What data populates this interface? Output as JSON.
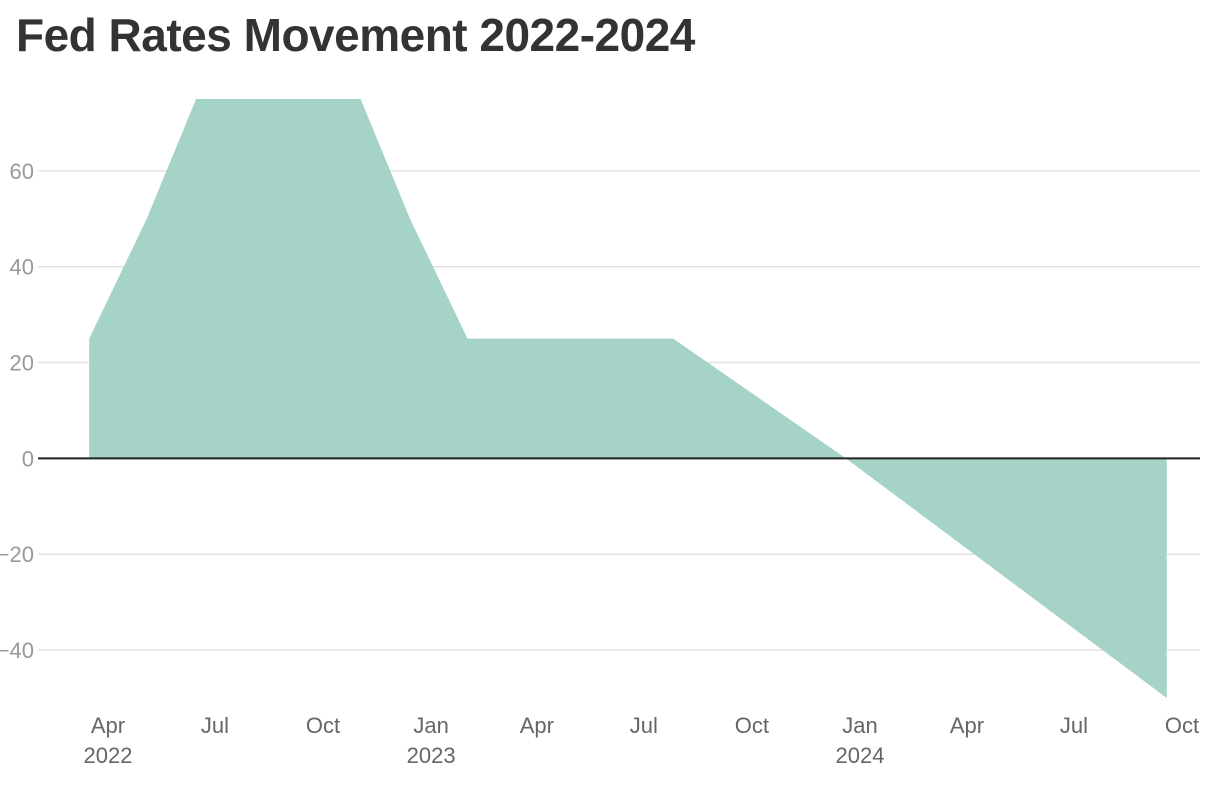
{
  "colors": {
    "area_fill": "#a5d3c7",
    "gridline": "#e2e2e2",
    "zero_line": "#222222",
    "title": "#333333",
    "y_tick": "#999999",
    "x_tick": "#666666"
  },
  "chart_data": {
    "type": "area",
    "title": "Fed Rates Movement 2022-2024",
    "xlabel": "",
    "ylabel": "",
    "ylim": [
      -50,
      75
    ],
    "xlim": [
      "2022-03-15",
      "2024-10-01"
    ],
    "grid": true,
    "legend": "none",
    "y_ticks": [
      {
        "value": 60,
        "label": "60"
      },
      {
        "value": 40,
        "label": "40"
      },
      {
        "value": 20,
        "label": "20"
      },
      {
        "value": 0,
        "label": "0"
      },
      {
        "value": -20,
        "label": "−20"
      },
      {
        "value": -40,
        "label": "−40"
      }
    ],
    "x_ticks": [
      {
        "date": "2022-04-01",
        "label": "Apr",
        "sublabel": "2022"
      },
      {
        "date": "2022-07-01",
        "label": "Jul",
        "sublabel": ""
      },
      {
        "date": "2022-10-01",
        "label": "Oct",
        "sublabel": ""
      },
      {
        "date": "2023-01-01",
        "label": "Jan",
        "sublabel": "2023"
      },
      {
        "date": "2023-04-01",
        "label": "Apr",
        "sublabel": ""
      },
      {
        "date": "2023-07-01",
        "label": "Jul",
        "sublabel": ""
      },
      {
        "date": "2023-10-01",
        "label": "Oct",
        "sublabel": ""
      },
      {
        "date": "2024-01-01",
        "label": "Jan",
        "sublabel": "2024"
      },
      {
        "date": "2024-04-01",
        "label": "Apr",
        "sublabel": ""
      },
      {
        "date": "2024-07-01",
        "label": "Jul",
        "sublabel": ""
      },
      {
        "date": "2024-10-01",
        "label": "Oct",
        "sublabel": ""
      }
    ],
    "series": [
      {
        "x": [
          "2022-03-16",
          "2022-05-04",
          "2022-06-15",
          "2022-07-27",
          "2022-09-21",
          "2022-11-02",
          "2022-12-14",
          "2023-02-01",
          "2023-03-22",
          "2023-05-03",
          "2023-07-26",
          "2023-12-20",
          "2024-09-18"
        ],
        "values": [
          25,
          50,
          75,
          75,
          75,
          75,
          50,
          25,
          25,
          25,
          25,
          0,
          -50
        ]
      }
    ]
  }
}
